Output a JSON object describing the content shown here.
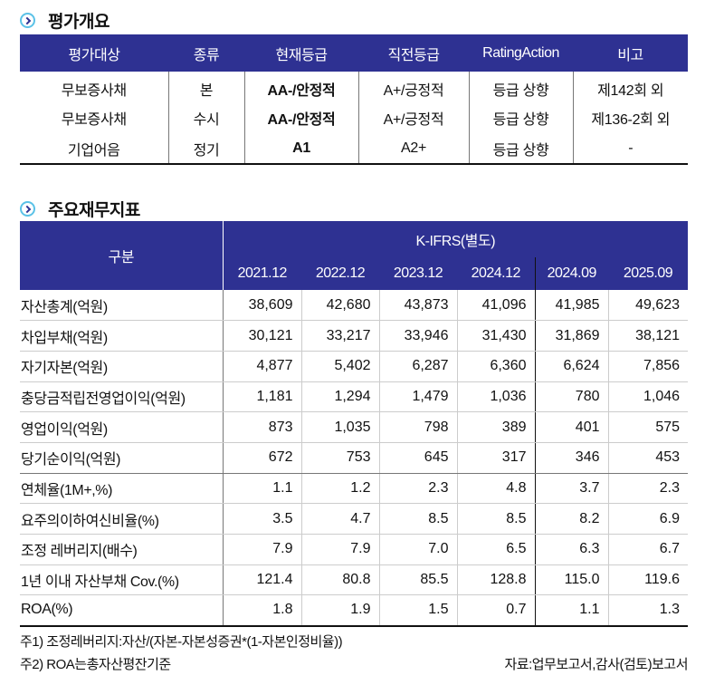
{
  "rating_section": {
    "title": "평가개요",
    "headers": [
      "평가대상",
      "종류",
      "현재등급",
      "직전등급",
      "RatingAction",
      "비고"
    ],
    "rows": [
      {
        "target": "무보증사채",
        "type": "본",
        "current": "AA-/안정적",
        "previous": "A+/긍정적",
        "action": "등급 상향",
        "note": "제142회 외"
      },
      {
        "target": "무보증사채",
        "type": "수시",
        "current": "AA-/안정적",
        "previous": "A+/긍정적",
        "action": "등급 상향",
        "note": "제136-2회 외"
      },
      {
        "target": "기업어음",
        "type": "정기",
        "current": "A1",
        "previous": "A2+",
        "action": "등급 상향",
        "note": "-"
      }
    ]
  },
  "financial_section": {
    "title": "주요재무지표",
    "row_header": "구분",
    "group_header": "K-IFRS(별도)",
    "periods": [
      "2021.12",
      "2022.12",
      "2023.12",
      "2024.12",
      "2024.09",
      "2025.09"
    ],
    "rows": [
      {
        "label": "자산총계(억원)",
        "values": [
          "38,609",
          "42,680",
          "43,873",
          "41,096",
          "41,985",
          "49,623"
        ]
      },
      {
        "label": "차입부채(억원)",
        "values": [
          "30,121",
          "33,217",
          "33,946",
          "31,430",
          "31,869",
          "38,121"
        ]
      },
      {
        "label": "자기자본(억원)",
        "values": [
          "4,877",
          "5,402",
          "6,287",
          "6,360",
          "6,624",
          "7,856"
        ]
      },
      {
        "label": "충당금적립전영업이익(억원)",
        "values": [
          "1,181",
          "1,294",
          "1,479",
          "1,036",
          "780",
          "1,046"
        ]
      },
      {
        "label": "영업이익(억원)",
        "values": [
          "873",
          "1,035",
          "798",
          "389",
          "401",
          "575"
        ]
      },
      {
        "label": "당기순이익(억원)",
        "values": [
          "672",
          "753",
          "645",
          "317",
          "346",
          "453"
        ]
      },
      {
        "label": "연체율(1M+,%)",
        "values": [
          "1.1",
          "1.2",
          "2.3",
          "4.8",
          "3.7",
          "2.3"
        ]
      },
      {
        "label": "요주의이하여신비율(%)",
        "values": [
          "3.5",
          "4.7",
          "8.5",
          "8.5",
          "8.2",
          "6.9"
        ]
      },
      {
        "label": "조정 레버리지(배수)",
        "values": [
          "7.9",
          "7.9",
          "7.0",
          "6.5",
          "6.3",
          "6.7"
        ]
      },
      {
        "label": "1년 이내 자산부채 Cov.(%)",
        "values": [
          "121.4",
          "80.8",
          "85.5",
          "128.8",
          "115.0",
          "119.6"
        ]
      },
      {
        "label": "ROA(%)",
        "values": [
          "1.8",
          "1.9",
          "1.5",
          "0.7",
          "1.1",
          "1.3"
        ]
      }
    ],
    "notes": [
      "주1) 조정레버리지:자산/(자본-자본성증권*(1-자본인정비율))",
      "주2) ROA는총자산평잔기준"
    ],
    "source": "자료:업무보고서,감사(검토)보고서"
  },
  "colors": {
    "header_bg": "#2e3192",
    "bullet_ring": "#5bc2e7"
  }
}
